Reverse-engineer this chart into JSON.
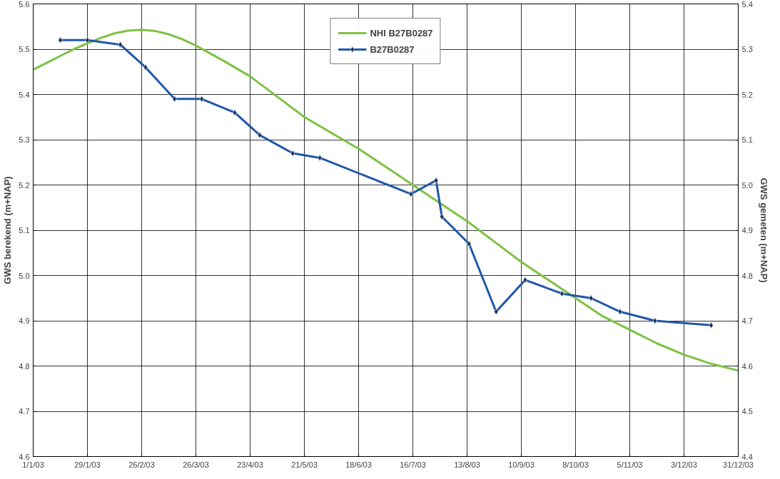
{
  "chart_data": {
    "type": "line",
    "ylabel": "GWS berekend (m+NAP)",
    "y2label": "GWS gemeten (m+NAP)",
    "xlim": [
      "2003-01-01",
      "2003-12-31"
    ],
    "xticks": [
      {
        "value": "2003-01-01",
        "label": "1/1/03"
      },
      {
        "value": "2003-01-29",
        "label": "29/1/03"
      },
      {
        "value": "2003-02-26",
        "label": "26/2/03"
      },
      {
        "value": "2003-03-26",
        "label": "26/3/03"
      },
      {
        "value": "2003-04-23",
        "label": "23/4/03"
      },
      {
        "value": "2003-05-21",
        "label": "21/5/03"
      },
      {
        "value": "2003-06-18",
        "label": "18/6/03"
      },
      {
        "value": "2003-07-16",
        "label": "16/7/03"
      },
      {
        "value": "2003-08-13",
        "label": "13/8/03"
      },
      {
        "value": "2003-09-10",
        "label": "10/9/03"
      },
      {
        "value": "2003-10-08",
        "label": "8/10/03"
      },
      {
        "value": "2003-11-05",
        "label": "5/11/03"
      },
      {
        "value": "2003-12-03",
        "label": "3/12/03"
      },
      {
        "value": "2003-12-31",
        "label": "31/12/03"
      }
    ],
    "ylim": [
      4.6,
      5.6
    ],
    "yticks": [
      4.6,
      4.7,
      4.8,
      4.9,
      {
        "value": 5,
        "label": "5.0"
      },
      5.1,
      5.2,
      5.3,
      5.4,
      5.5,
      5.6
    ],
    "y2lim": [
      4.4,
      5.4
    ],
    "y2ticks": [
      4.4,
      4.5,
      4.6,
      4.7,
      4.8,
      4.9,
      {
        "value": 5,
        "label": "5.0"
      },
      5.1,
      5.2,
      5.3,
      5.4
    ],
    "grid": true,
    "legend": "top",
    "series": [
      {
        "name": "NHI B27B0287",
        "color": "#7dc243",
        "marker": "none",
        "x": [
          "2003-01-01",
          "2003-01-08",
          "2003-01-15",
          "2003-01-22",
          "2003-01-29",
          "2003-02-05",
          "2003-02-12",
          "2003-02-19",
          "2003-02-26",
          "2003-03-05",
          "2003-03-12",
          "2003-03-19",
          "2003-03-26",
          "2003-04-09",
          "2003-04-23",
          "2003-05-07",
          "2003-05-21",
          "2003-06-04",
          "2003-06-18",
          "2003-07-02",
          "2003-07-16",
          "2003-07-30",
          "2003-08-13",
          "2003-08-27",
          "2003-09-10",
          "2003-09-24",
          "2003-10-08",
          "2003-10-22",
          "2003-11-05",
          "2003-11-19",
          "2003-12-03",
          "2003-12-17",
          "2003-12-31"
        ],
        "values": [
          5.455,
          5.47,
          5.485,
          5.5,
          5.513,
          5.525,
          5.535,
          5.541,
          5.543,
          5.54,
          5.533,
          5.522,
          5.508,
          5.475,
          5.44,
          5.395,
          5.35,
          5.315,
          5.28,
          5.24,
          5.2,
          5.16,
          5.12,
          5.075,
          5.03,
          4.99,
          4.95,
          4.91,
          4.88,
          4.85,
          4.825,
          4.805,
          4.79
        ]
      },
      {
        "name": "B27B0287",
        "color": "#1f57a8",
        "marker": "diamond",
        "axis": "y2",
        "x": [
          "2003-01-15",
          "2003-01-29",
          "2003-02-15",
          "2003-02-28",
          "2003-03-15",
          "2003-03-29",
          "2003-04-15",
          "2003-04-28",
          "2003-05-15",
          "2003-05-29",
          "2003-07-15",
          "2003-07-28",
          "2003-07-31",
          "2003-08-14",
          "2003-08-28",
          "2003-09-12",
          "2003-10-01",
          "2003-10-16",
          "2003-10-31",
          "2003-11-18",
          "2003-12-17"
        ],
        "values": [
          5.32,
          5.32,
          5.31,
          5.26,
          5.19,
          5.19,
          5.16,
          5.11,
          5.07,
          5.06,
          4.98,
          5.01,
          4.93,
          4.87,
          4.72,
          4.79,
          4.76,
          4.75,
          4.72,
          4.7,
          4.69
        ]
      }
    ]
  }
}
